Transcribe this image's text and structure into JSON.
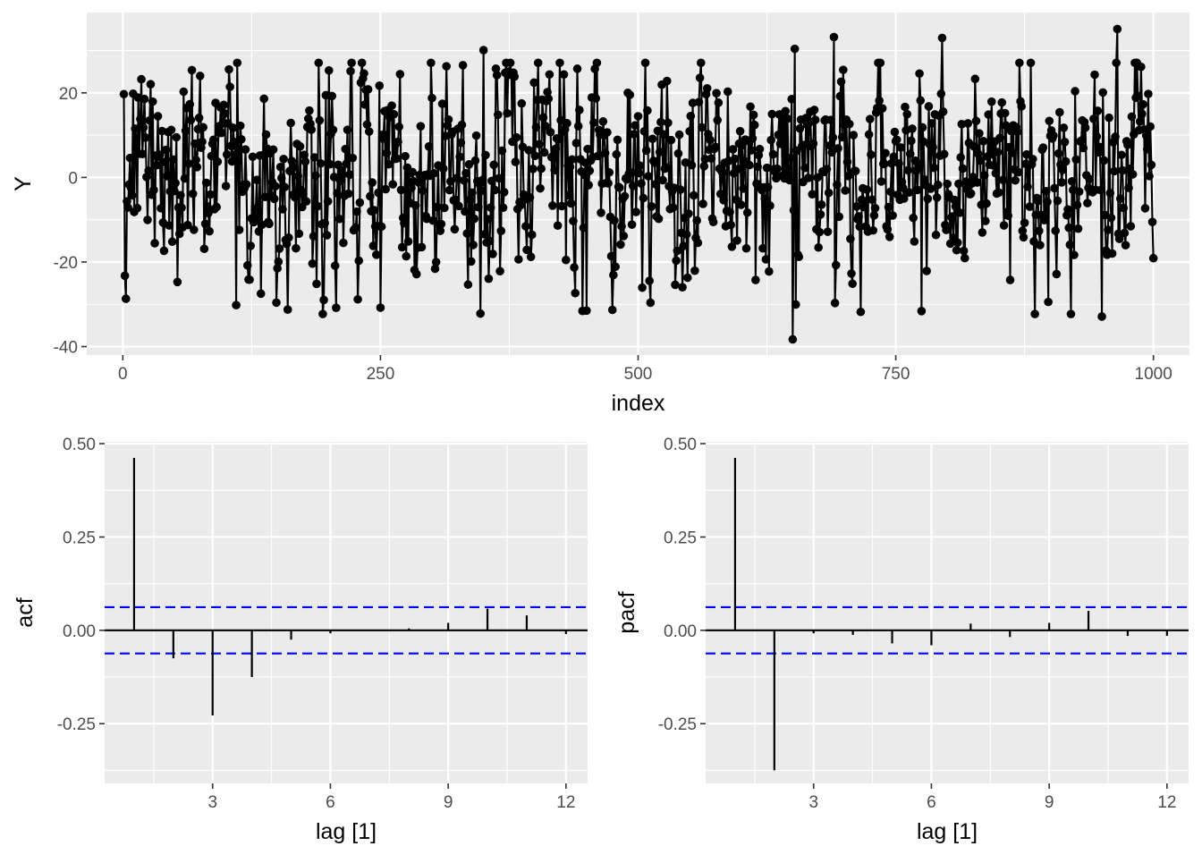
{
  "chart_data": [
    {
      "type": "line",
      "panel": "series",
      "xlabel": "index",
      "ylabel": "Y",
      "xlim": [
        -35,
        1035
      ],
      "ylim": [
        -42,
        39
      ],
      "xticks": [
        0,
        250,
        500,
        750,
        1000
      ],
      "xtick_labels": [
        "0",
        "250",
        "500",
        "750",
        "1000"
      ],
      "yticks": [
        -40,
        -20,
        0,
        20
      ],
      "ytick_labels": [
        "-40",
        "-20",
        "0",
        "20"
      ],
      "grid": true,
      "markers": true,
      "n_points": 1000,
      "x_range": [
        1,
        1000
      ],
      "observed_range": [
        -38.3,
        35.1
      ],
      "highlighted_points": [
        {
          "x": 1,
          "y": 19.7
        },
        {
          "x": 3,
          "y": -28.7
        },
        {
          "x": 200,
          "y": 25.3
        },
        {
          "x": 110,
          "y": -30.2
        },
        {
          "x": 250,
          "y": -30.8
        },
        {
          "x": 350,
          "y": 30.1
        },
        {
          "x": 347,
          "y": -32.2
        },
        {
          "x": 450,
          "y": -31.5
        },
        {
          "x": 650,
          "y": -38.3
        },
        {
          "x": 652,
          "y": 30.4
        },
        {
          "x": 690,
          "y": 33.2
        },
        {
          "x": 795,
          "y": 33.0
        },
        {
          "x": 775,
          "y": -31.6
        },
        {
          "x": 965,
          "y": 35.1
        },
        {
          "x": 950,
          "y": -32.9
        },
        {
          "x": 1000,
          "y": 28.5
        },
        {
          "x": 1000,
          "y": -19.1
        }
      ]
    },
    {
      "type": "bar",
      "panel": "acf",
      "xlabel": "lag [1]",
      "ylabel": "acf",
      "categories": [
        1,
        2,
        3,
        4,
        5,
        6,
        7,
        8,
        9,
        10,
        11,
        12
      ],
      "values": [
        0.462,
        -0.075,
        -0.228,
        -0.125,
        -0.025,
        -0.008,
        -0.002,
        0.005,
        0.02,
        0.058,
        0.04,
        -0.01
      ],
      "ci": [
        -0.062,
        0.062
      ],
      "xlim": [
        0.25,
        12.55
      ],
      "ylim": [
        -0.41,
        0.505
      ],
      "xticks": [
        3,
        6,
        9,
        12
      ],
      "xtick_labels": [
        "3",
        "6",
        "9",
        "12"
      ],
      "yticks": [
        -0.25,
        0.0,
        0.25,
        0.5
      ],
      "ytick_labels": [
        "-0.25",
        "0.00",
        "0.25",
        "0.50"
      ],
      "grid": true
    },
    {
      "type": "bar",
      "panel": "pacf",
      "xlabel": "lag [1]",
      "ylabel": "pacf",
      "categories": [
        1,
        2,
        3,
        4,
        5,
        6,
        7,
        8,
        9,
        10,
        11,
        12
      ],
      "values": [
        0.462,
        -0.375,
        -0.008,
        -0.012,
        -0.035,
        -0.04,
        0.018,
        -0.018,
        0.02,
        0.052,
        -0.015,
        -0.015
      ],
      "ci": [
        -0.062,
        0.062
      ],
      "xlim": [
        0.25,
        12.55
      ],
      "ylim": [
        -0.41,
        0.505
      ],
      "xticks": [
        3,
        6,
        9,
        12
      ],
      "xtick_labels": [
        "3",
        "6",
        "9",
        "12"
      ],
      "yticks": [
        -0.25,
        0.0,
        0.25,
        0.5
      ],
      "ytick_labels": [
        "-0.25",
        "0.00",
        "0.25",
        "0.50"
      ],
      "grid": true
    }
  ],
  "colors": {
    "panel_bg": "#ebebeb",
    "grid_major": "#ffffff",
    "data": "#000000",
    "ci_line": "#0000ff",
    "tick_text": "#4d4d4d"
  }
}
